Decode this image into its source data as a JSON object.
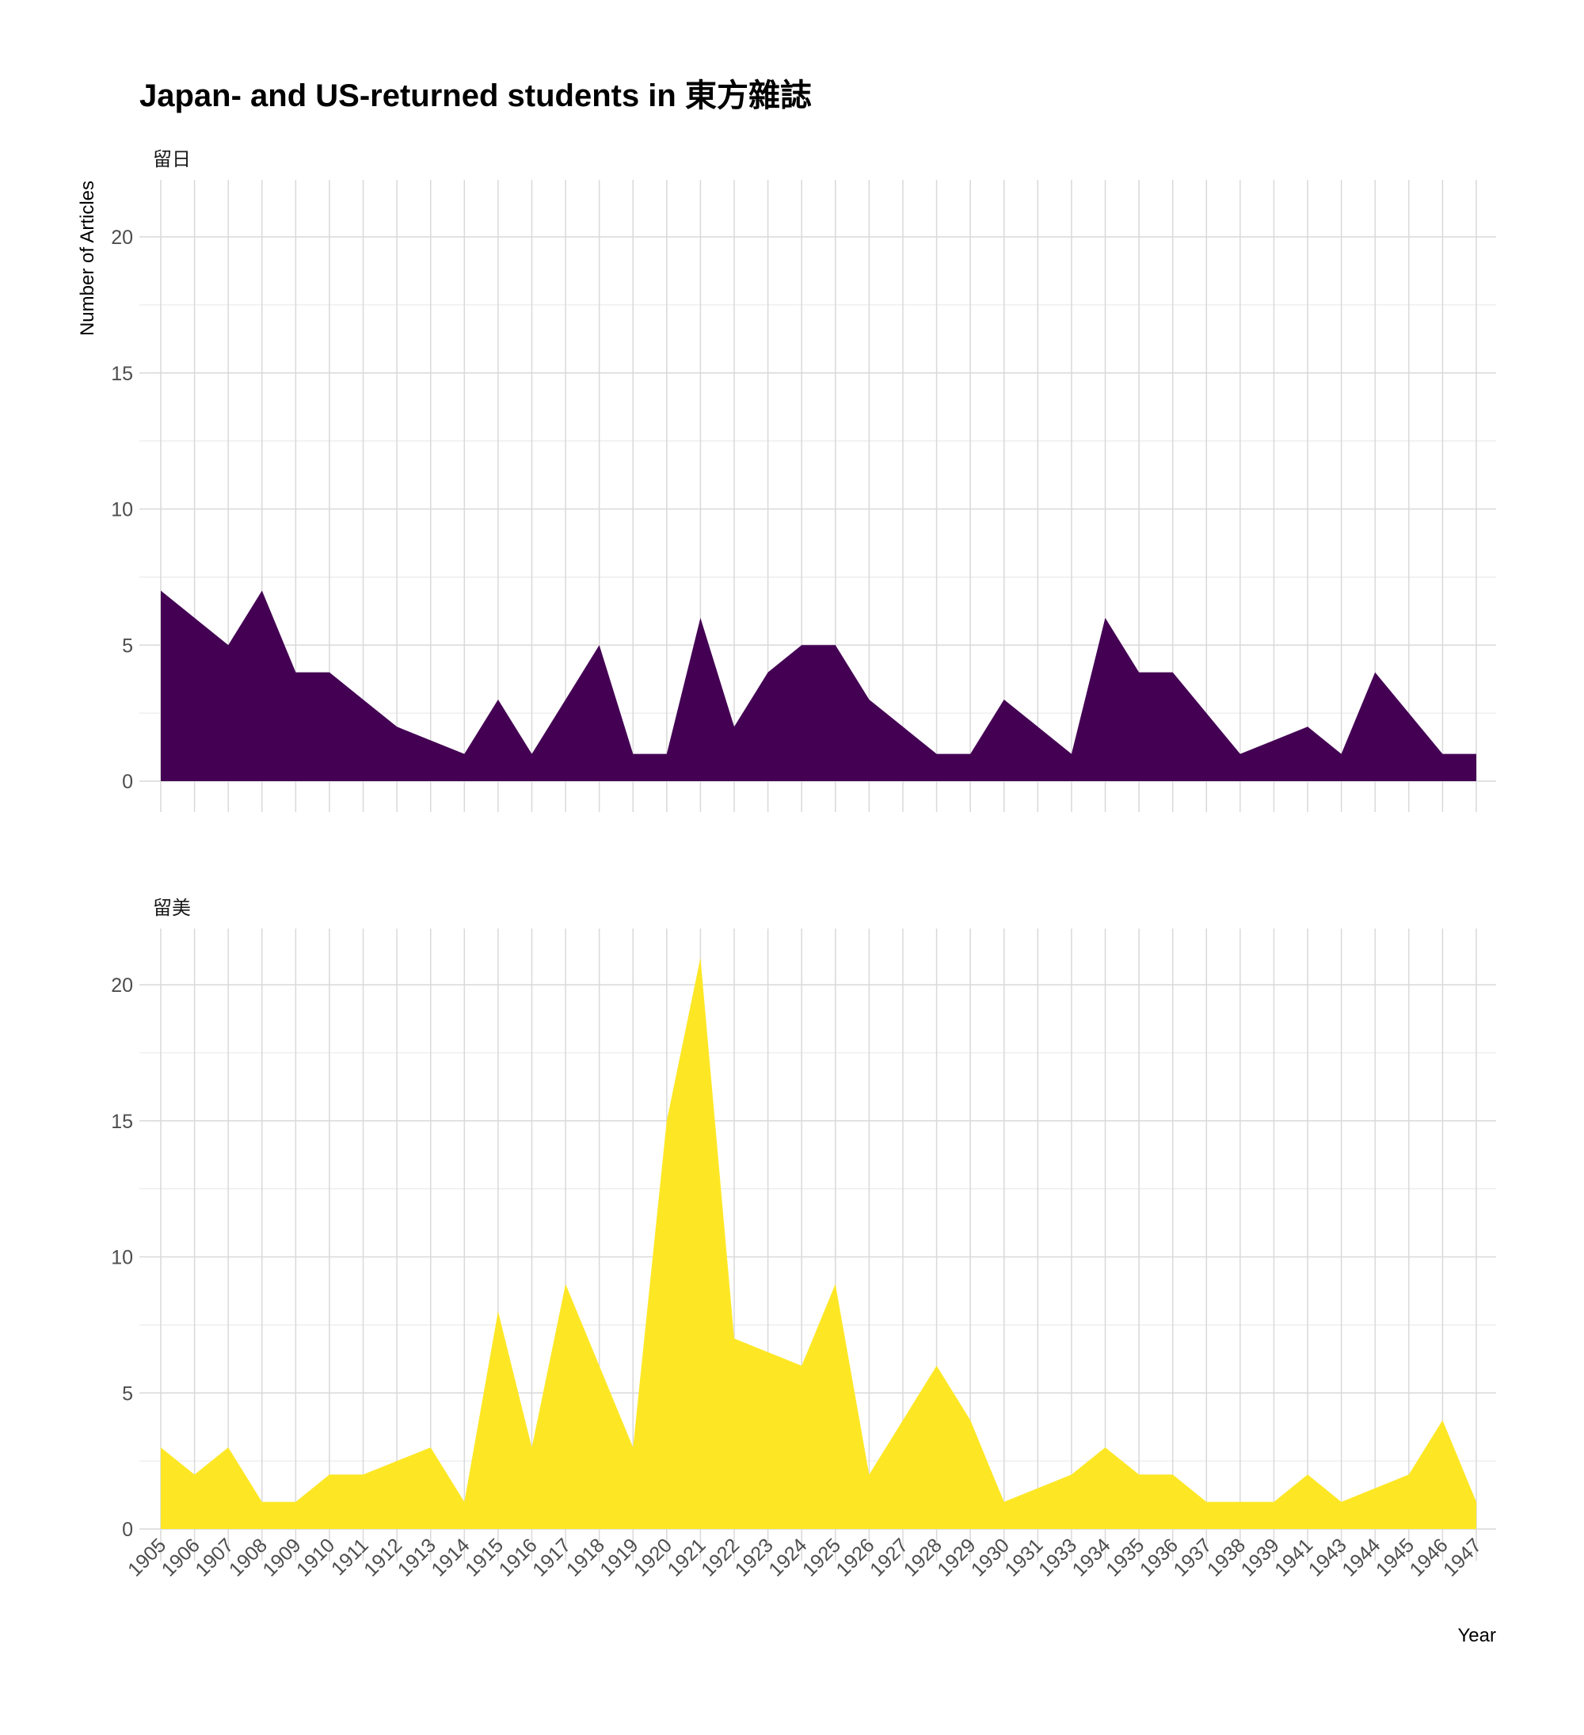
{
  "chart_data": {
    "type": "area",
    "title": "Japan- and US-returned students in 東方雜誌",
    "xlabel": "Year",
    "ylabel": "Number of Articles",
    "x": [
      "1905",
      "1906",
      "1907",
      "1908",
      "1909",
      "1910",
      "1911",
      "1912",
      "1913",
      "1914",
      "1915",
      "1916",
      "1917",
      "1918",
      "1919",
      "1920",
      "1921",
      "1922",
      "1923",
      "1924",
      "1925",
      "1926",
      "1927",
      "1928",
      "1929",
      "1930",
      "1931",
      "1933",
      "1934",
      "1935",
      "1936",
      "1937",
      "1938",
      "1939",
      "1941",
      "1943",
      "1944",
      "1945",
      "1946",
      "1947"
    ],
    "ylim": [
      0,
      22
    ],
    "yticks": [
      0,
      5,
      10,
      15,
      20
    ],
    "grid": true,
    "legend": "none",
    "facets": [
      {
        "name": "留日",
        "color": "#440154",
        "values": [
          7,
          6,
          5,
          7,
          4,
          4,
          3,
          2,
          1.5,
          1,
          3,
          1,
          3,
          5,
          1,
          1,
          6,
          2,
          4,
          5,
          5,
          3,
          2,
          1,
          1,
          3,
          2,
          1,
          6,
          4,
          4,
          2.5,
          1,
          1.5,
          2,
          1,
          4,
          2.5,
          1,
          1
        ]
      },
      {
        "name": "留美",
        "color": "#FDE725",
        "values": [
          3,
          2,
          3,
          1,
          1,
          2,
          2,
          2.5,
          3,
          1,
          8,
          3,
          9,
          6,
          3,
          15,
          21,
          7,
          6.5,
          6,
          9,
          2,
          4,
          6,
          4,
          1,
          1.5,
          2,
          3,
          2,
          2,
          1,
          1,
          1,
          2,
          1,
          1.5,
          2,
          4,
          1
        ]
      }
    ]
  }
}
